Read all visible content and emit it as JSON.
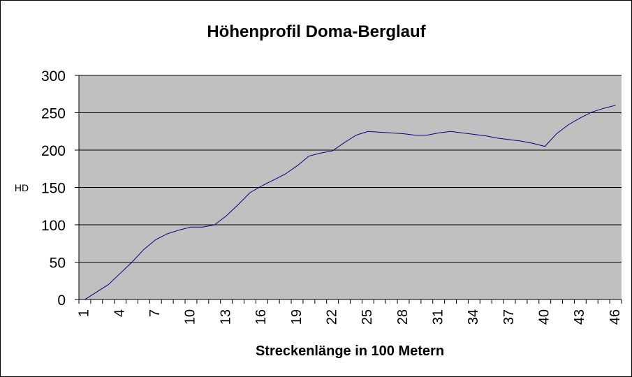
{
  "chart_data": {
    "type": "line",
    "title": "Höhenprofil Doma-Berglauf",
    "xlabel": "Streckenlänge in 100 Metern",
    "ylabel": "HD",
    "ylim": [
      0,
      300
    ],
    "yticks": [
      "0",
      "50",
      "100",
      "150",
      "200",
      "250",
      "300"
    ],
    "xticks": [
      "1",
      "4",
      "7",
      "10",
      "13",
      "16",
      "19",
      "22",
      "25",
      "28",
      "31",
      "34",
      "37",
      "40",
      "43",
      "46"
    ],
    "grid": "horizontal",
    "legend": "none",
    "colors": {
      "plot_background": "#c0c0c0",
      "line": "#000080",
      "gridline": "#000000",
      "frame": "#000000"
    },
    "x": [
      1,
      2,
      3,
      4,
      5,
      6,
      7,
      8,
      9,
      10,
      11,
      12,
      13,
      14,
      15,
      16,
      17,
      18,
      19,
      20,
      21,
      22,
      23,
      24,
      25,
      26,
      27,
      28,
      29,
      30,
      31,
      32,
      33,
      34,
      35,
      36,
      37,
      38,
      39,
      40,
      41,
      42,
      43,
      44,
      45,
      46
    ],
    "series": [
      {
        "values": [
          0,
          10,
          20,
          35,
          50,
          67,
          80,
          88,
          93,
          97,
          97,
          100,
          112,
          127,
          143,
          152,
          160,
          168,
          179,
          192,
          196,
          199,
          210,
          220,
          225,
          224,
          223,
          222,
          220,
          220,
          223,
          225,
          223,
          221,
          219,
          216,
          214,
          212,
          209,
          205,
          222,
          234,
          243,
          251,
          256,
          260
        ]
      }
    ]
  }
}
